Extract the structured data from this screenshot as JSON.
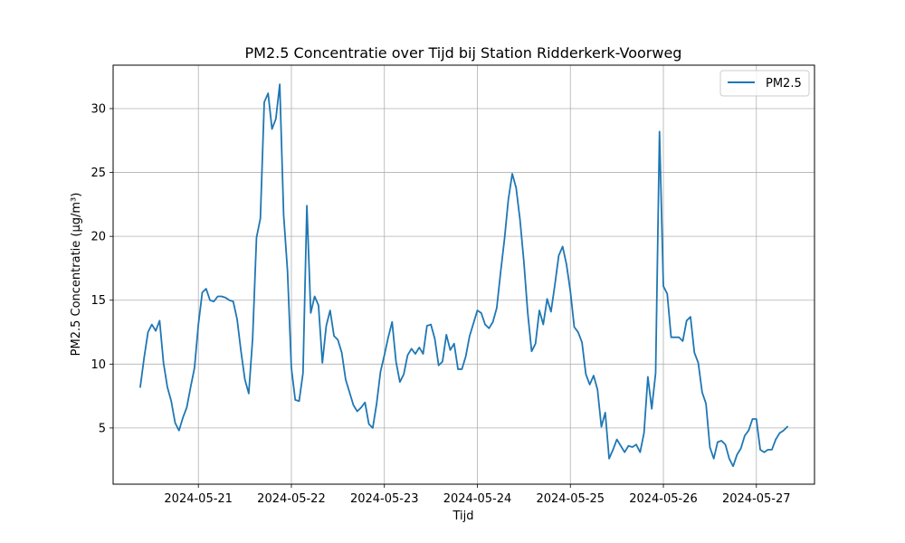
{
  "chart_data": {
    "type": "line",
    "title": "PM2.5 Concentratie over Tijd bij Station Ridderkerk-Voorweg",
    "xlabel": "Tijd",
    "ylabel": "PM2.5 Concentratie (µg/m³)",
    "x_tick_labels": [
      "2024-05-21",
      "2024-05-22",
      "2024-05-23",
      "2024-05-24",
      "2024-05-25",
      "2024-05-26",
      "2024-05-27"
    ],
    "x_range": [
      "2024-05-20 02:00",
      "2024-05-27 15:00"
    ],
    "y_ticks": [
      5,
      10,
      15,
      20,
      25,
      30
    ],
    "ylim": [
      0.6,
      33.4
    ],
    "grid": true,
    "legend_position": "top-right",
    "line_color": "#1f77b4",
    "series": [
      {
        "name": "PM2.5",
        "x": [
          "2024-05-20 09:00",
          "2024-05-20 10:00",
          "2024-05-20 11:00",
          "2024-05-20 12:00",
          "2024-05-20 13:00",
          "2024-05-20 14:00",
          "2024-05-20 15:00",
          "2024-05-20 16:00",
          "2024-05-20 17:00",
          "2024-05-20 18:00",
          "2024-05-20 19:00",
          "2024-05-20 20:00",
          "2024-05-20 21:00",
          "2024-05-20 22:00",
          "2024-05-20 23:00",
          "2024-05-21 00:00",
          "2024-05-21 01:00",
          "2024-05-21 02:00",
          "2024-05-21 03:00",
          "2024-05-21 04:00",
          "2024-05-21 05:00",
          "2024-05-21 06:00",
          "2024-05-21 07:00",
          "2024-05-21 08:00",
          "2024-05-21 09:00",
          "2024-05-21 10:00",
          "2024-05-21 11:00",
          "2024-05-21 12:00",
          "2024-05-21 13:00",
          "2024-05-21 14:00",
          "2024-05-21 15:00",
          "2024-05-21 16:00",
          "2024-05-21 17:00",
          "2024-05-21 18:00",
          "2024-05-21 19:00",
          "2024-05-21 20:00",
          "2024-05-21 21:00",
          "2024-05-21 22:00",
          "2024-05-21 23:00",
          "2024-05-22 00:00",
          "2024-05-22 01:00",
          "2024-05-22 02:00",
          "2024-05-22 03:00",
          "2024-05-22 04:00",
          "2024-05-22 05:00",
          "2024-05-22 06:00",
          "2024-05-22 07:00",
          "2024-05-22 08:00",
          "2024-05-22 09:00",
          "2024-05-22 10:00",
          "2024-05-22 11:00",
          "2024-05-22 12:00",
          "2024-05-22 13:00",
          "2024-05-22 14:00",
          "2024-05-22 15:00",
          "2024-05-22 16:00",
          "2024-05-22 17:00",
          "2024-05-22 18:00",
          "2024-05-22 19:00",
          "2024-05-22 20:00",
          "2024-05-22 21:00",
          "2024-05-22 22:00",
          "2024-05-22 23:00",
          "2024-05-23 00:00",
          "2024-05-23 01:00",
          "2024-05-23 02:00",
          "2024-05-23 03:00",
          "2024-05-23 04:00",
          "2024-05-23 05:00",
          "2024-05-23 06:00",
          "2024-05-23 07:00",
          "2024-05-23 08:00",
          "2024-05-23 09:00",
          "2024-05-23 10:00",
          "2024-05-23 11:00",
          "2024-05-23 12:00",
          "2024-05-23 13:00",
          "2024-05-23 14:00",
          "2024-05-23 15:00",
          "2024-05-23 16:00",
          "2024-05-23 17:00",
          "2024-05-23 18:00",
          "2024-05-23 19:00",
          "2024-05-23 20:00",
          "2024-05-23 21:00",
          "2024-05-23 22:00",
          "2024-05-23 23:00",
          "2024-05-24 00:00",
          "2024-05-24 01:00",
          "2024-05-24 02:00",
          "2024-05-24 03:00",
          "2024-05-24 04:00",
          "2024-05-24 05:00",
          "2024-05-24 06:00",
          "2024-05-24 07:00",
          "2024-05-24 08:00",
          "2024-05-24 09:00",
          "2024-05-24 10:00",
          "2024-05-24 11:00",
          "2024-05-24 12:00",
          "2024-05-24 13:00",
          "2024-05-24 14:00",
          "2024-05-24 15:00",
          "2024-05-24 16:00",
          "2024-05-24 17:00",
          "2024-05-24 18:00",
          "2024-05-24 19:00",
          "2024-05-24 20:00",
          "2024-05-24 21:00",
          "2024-05-24 22:00",
          "2024-05-24 23:00",
          "2024-05-25 00:00",
          "2024-05-25 01:00",
          "2024-05-25 02:00",
          "2024-05-25 03:00",
          "2024-05-25 04:00",
          "2024-05-25 05:00",
          "2024-05-25 06:00",
          "2024-05-25 07:00",
          "2024-05-25 08:00",
          "2024-05-25 09:00",
          "2024-05-25 10:00",
          "2024-05-25 11:00",
          "2024-05-25 12:00",
          "2024-05-25 13:00",
          "2024-05-25 14:00",
          "2024-05-25 15:00",
          "2024-05-25 16:00",
          "2024-05-25 17:00",
          "2024-05-25 18:00",
          "2024-05-25 19:00",
          "2024-05-25 20:00",
          "2024-05-25 21:00",
          "2024-05-25 22:00",
          "2024-05-25 23:00",
          "2024-05-26 00:00",
          "2024-05-26 01:00",
          "2024-05-26 02:00",
          "2024-05-26 03:00",
          "2024-05-26 04:00",
          "2024-05-26 05:00",
          "2024-05-26 06:00",
          "2024-05-26 07:00",
          "2024-05-26 08:00",
          "2024-05-26 09:00",
          "2024-05-26 10:00",
          "2024-05-26 11:00",
          "2024-05-26 12:00",
          "2024-05-26 13:00",
          "2024-05-26 14:00",
          "2024-05-26 15:00",
          "2024-05-26 16:00",
          "2024-05-26 17:00",
          "2024-05-26 18:00",
          "2024-05-26 19:00",
          "2024-05-26 20:00",
          "2024-05-26 21:00",
          "2024-05-26 22:00",
          "2024-05-26 23:00",
          "2024-05-27 00:00",
          "2024-05-27 01:00",
          "2024-05-27 02:00",
          "2024-05-27 03:00",
          "2024-05-27 04:00",
          "2024-05-27 05:00",
          "2024-05-27 06:00",
          "2024-05-27 07:00",
          "2024-05-27 08:00"
        ],
        "values": [
          8.2,
          10.5,
          12.5,
          13.1,
          12.6,
          13.4,
          10.1,
          8.2,
          7.1,
          5.4,
          4.8,
          5.8,
          6.6,
          8.2,
          9.7,
          13.1,
          15.6,
          15.9,
          15.0,
          14.9,
          15.3,
          15.3,
          15.2,
          15.0,
          14.9,
          13.5,
          11.0,
          8.8,
          7.7,
          12.0,
          19.9,
          21.4,
          30.5,
          31.2,
          28.4,
          29.2,
          31.9,
          21.7,
          17.3,
          9.7,
          7.2,
          7.1,
          9.3,
          22.4,
          14.0,
          15.3,
          14.6,
          10.1,
          13.0,
          14.2,
          12.2,
          11.9,
          10.9,
          8.8,
          7.8,
          6.8,
          6.3,
          6.6,
          7.0,
          5.3,
          5.0,
          6.9,
          9.4,
          10.7,
          12.1,
          13.3,
          10.2,
          8.6,
          9.2,
          10.7,
          11.2,
          10.8,
          11.3,
          10.8,
          13.0,
          13.1,
          12.0,
          9.9,
          10.2,
          12.3,
          11.1,
          11.6,
          9.6,
          9.6,
          10.6,
          12.2,
          13.2,
          14.2,
          14.0,
          13.1,
          12.8,
          13.3,
          14.4,
          17.2,
          19.8,
          22.9,
          24.9,
          23.8,
          21.3,
          18.0,
          14.0,
          11.0,
          11.6,
          14.2,
          13.1,
          15.1,
          14.1,
          16.2,
          18.5,
          19.2,
          17.8,
          15.7,
          12.9,
          12.5,
          11.7,
          9.2,
          8.4,
          9.1,
          8.0,
          5.1,
          6.2,
          2.6,
          3.3,
          4.1,
          3.6,
          3.1,
          3.6,
          3.5,
          3.7,
          3.1,
          4.6,
          9.0,
          6.5,
          9.3,
          28.2,
          16.1,
          15.5,
          12.1,
          12.1,
          12.1,
          11.8,
          13.4,
          13.7,
          10.9,
          10.1,
          7.8,
          6.9,
          3.5,
          2.6,
          3.9,
          4.0,
          3.7,
          2.6,
          2.0,
          2.9,
          3.4,
          4.4,
          4.8,
          5.7,
          5.7,
          3.3,
          3.1,
          3.3,
          3.3,
          4.1,
          4.6,
          4.8,
          5.1
        ]
      }
    ]
  }
}
